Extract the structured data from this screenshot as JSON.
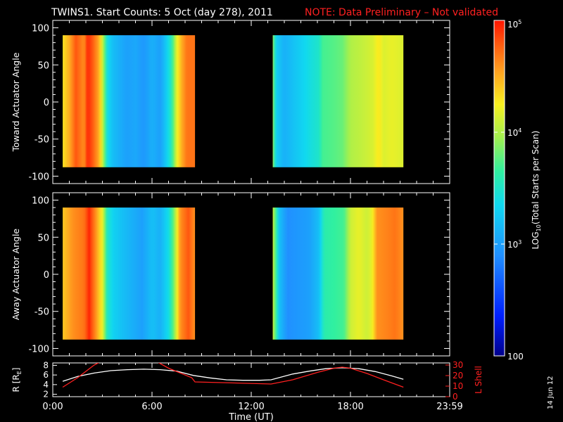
{
  "header": {
    "title": "TWINS1. Start Counts:  5 Oct (day 278), 2011",
    "note": "NOTE: Data Preliminary – Not validated"
  },
  "footer": {
    "date_stamp": "14 Jun 12"
  },
  "colors": {
    "background": "#000000",
    "axes": "#ffffff",
    "note": "#ff2020",
    "r_line": "#ffffff",
    "lshell_line": "#ff2020"
  },
  "chart_data": [
    {
      "type": "heatmap",
      "id": "toward",
      "ylabel": "Toward Actuator Angle",
      "ylim": [
        -110,
        110
      ],
      "yticks": [
        "-100",
        "-50",
        "0",
        "50",
        "100"
      ],
      "y_extent": [
        -88,
        90
      ],
      "xlim": [
        0,
        24
      ],
      "data_blocks": [
        {
          "t_start": 0.6,
          "t_end": 8.6,
          "profile": [
            [
              0.6,
              4.3
            ],
            [
              1.0,
              4.5
            ],
            [
              1.4,
              4.8
            ],
            [
              1.9,
              4.6
            ],
            [
              2.1,
              4.95
            ],
            [
              2.4,
              4.8
            ],
            [
              2.8,
              4.5
            ],
            [
              3.0,
              4.1
            ],
            [
              3.3,
              3.4
            ],
            [
              3.6,
              3.2
            ],
            [
              4.0,
              3.1
            ],
            [
              4.5,
              3.0
            ],
            [
              5.0,
              3.05
            ],
            [
              5.5,
              2.95
            ],
            [
              6.0,
              3.1
            ],
            [
              6.5,
              3.0
            ],
            [
              6.9,
              3.3
            ],
            [
              7.2,
              3.6
            ],
            [
              7.5,
              4.2
            ],
            [
              7.8,
              4.5
            ],
            [
              8.1,
              4.7
            ],
            [
              8.6,
              4.7
            ]
          ]
        },
        {
          "t_start": 13.3,
          "t_end": 21.2,
          "profile": [
            [
              13.3,
              3.9
            ],
            [
              13.5,
              3.3
            ],
            [
              14.0,
              3.1
            ],
            [
              14.5,
              3.2
            ],
            [
              15.0,
              3.3
            ],
            [
              15.5,
              3.4
            ],
            [
              16.1,
              3.5
            ],
            [
              16.3,
              3.7
            ],
            [
              17.0,
              3.75
            ],
            [
              17.5,
              3.8
            ],
            [
              18.0,
              4.0
            ],
            [
              18.5,
              4.05
            ],
            [
              19.0,
              4.1
            ],
            [
              19.4,
              4.15
            ],
            [
              19.7,
              4.3
            ],
            [
              20.0,
              4.15
            ],
            [
              20.5,
              4.2
            ],
            [
              21.2,
              4.15
            ]
          ]
        }
      ]
    },
    {
      "type": "heatmap",
      "id": "away",
      "ylabel": "Away Actuator Angle",
      "ylim": [
        -110,
        110
      ],
      "yticks": [
        "-100",
        "-50",
        "0",
        "50",
        "100"
      ],
      "y_extent": [
        -88,
        90
      ],
      "xlim": [
        0,
        24
      ],
      "data_blocks": [
        {
          "t_start": 0.6,
          "t_end": 8.6,
          "profile": [
            [
              0.6,
              4.4
            ],
            [
              1.2,
              4.6
            ],
            [
              1.9,
              4.7
            ],
            [
              2.2,
              4.95
            ],
            [
              2.6,
              4.6
            ],
            [
              3.0,
              4.2
            ],
            [
              3.3,
              3.5
            ],
            [
              3.7,
              3.3
            ],
            [
              4.2,
              3.2
            ],
            [
              4.8,
              3.1
            ],
            [
              5.4,
              3.0
            ],
            [
              6.0,
              3.2
            ],
            [
              6.5,
              3.1
            ],
            [
              7.0,
              3.4
            ],
            [
              7.3,
              3.8
            ],
            [
              7.7,
              4.6
            ],
            [
              8.2,
              4.8
            ],
            [
              8.6,
              4.6
            ]
          ]
        },
        {
          "t_start": 13.3,
          "t_end": 21.2,
          "profile": [
            [
              13.3,
              4.1
            ],
            [
              13.7,
              3.2
            ],
            [
              14.2,
              2.9
            ],
            [
              14.8,
              2.95
            ],
            [
              15.5,
              3.0
            ],
            [
              16.1,
              3.2
            ],
            [
              16.4,
              3.6
            ],
            [
              17.0,
              3.65
            ],
            [
              17.6,
              3.7
            ],
            [
              18.0,
              4.1
            ],
            [
              18.5,
              4.2
            ],
            [
              19.0,
              4.1
            ],
            [
              19.3,
              4.2
            ],
            [
              19.6,
              4.6
            ],
            [
              20.2,
              4.65
            ],
            [
              20.7,
              4.7
            ],
            [
              21.2,
              4.6
            ]
          ]
        }
      ]
    },
    {
      "type": "line",
      "id": "orbit",
      "ylabel": "R [R",
      "ylabel_sub": "E",
      "ylabel_end": "]",
      "yticks": [
        "2",
        "4",
        "6",
        "8"
      ],
      "ylim": [
        1.5,
        8.5
      ],
      "y2label": "L Shell",
      "y2ticks": [
        "0",
        "10",
        "20",
        "30"
      ],
      "y2lim": [
        0,
        32
      ],
      "xlabel": "Time (UT)",
      "xticks": [
        "0:00",
        "6:00",
        "12:00",
        "18:00",
        "23:59"
      ],
      "xtick_hours": [
        0,
        6,
        12,
        18,
        24
      ],
      "xlim": [
        0,
        24
      ],
      "series": [
        {
          "role": "R",
          "x": [
            0.6,
            1.5,
            2.5,
            3.5,
            4.5,
            5.5,
            6.5,
            7.5,
            8.5,
            9.5,
            10.5,
            11.5,
            12.5,
            13.2,
            14.5,
            15.5,
            16.5,
            17.5,
            18.5,
            19.5,
            20.5,
            21.2
          ],
          "y": [
            4.7,
            5.7,
            6.4,
            6.9,
            7.1,
            7.2,
            7.1,
            6.8,
            5.9,
            5.4,
            5.0,
            4.9,
            4.9,
            5.0,
            6.2,
            6.8,
            7.3,
            7.5,
            7.3,
            6.7,
            5.8,
            5.1
          ]
        },
        {
          "role": "L Shell",
          "x": [
            0.6,
            1.5,
            2.5,
            3.0,
            6.2,
            7.0,
            8.4,
            8.6,
            11.0,
            13.2,
            14.5,
            16.0,
            17.0,
            17.5,
            18.0,
            19.0,
            20.0,
            21.2
          ],
          "y": [
            9,
            18,
            30,
            34,
            34,
            27,
            18,
            14,
            13,
            12,
            16,
            23,
            27,
            28,
            27,
            22,
            16,
            9
          ]
        }
      ]
    }
  ],
  "colorbar": {
    "label": "LOG",
    "label_sub": "10",
    "label_rest": "(Total Starts per Scan)",
    "log_range": [
      2,
      5
    ],
    "ticks": [
      {
        "exp": 5,
        "text": "10",
        "sup": "5"
      },
      {
        "exp": 4,
        "text": "10",
        "sup": "4"
      },
      {
        "exp": 3,
        "text": "10",
        "sup": "3"
      },
      {
        "exp": 2,
        "text": "100",
        "sup": ""
      }
    ]
  }
}
